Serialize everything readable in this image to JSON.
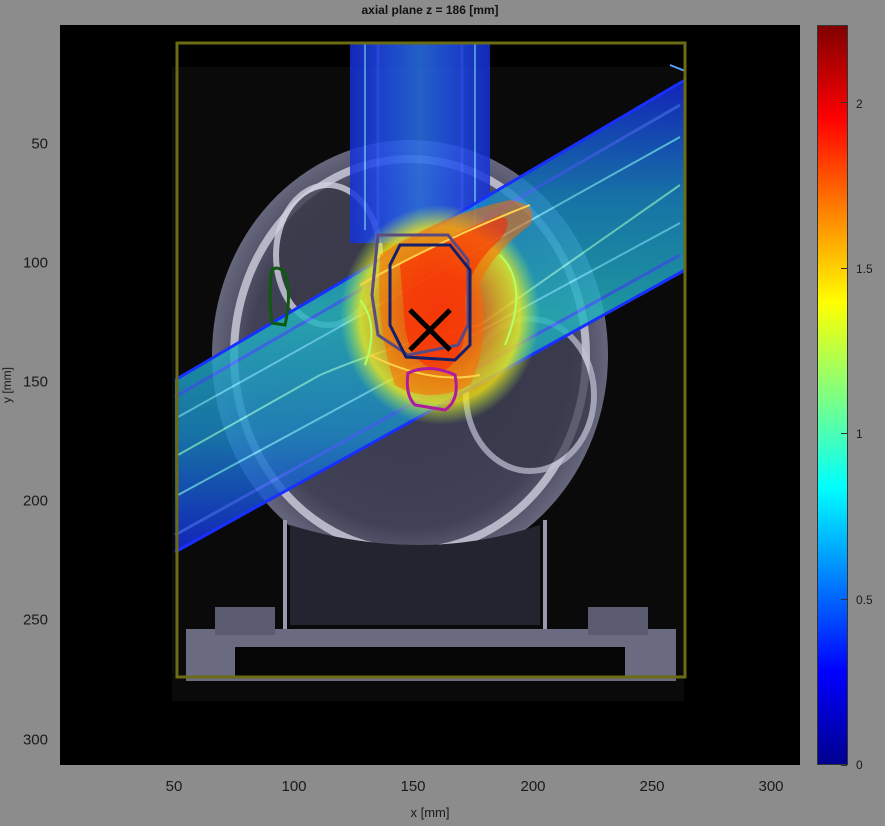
{
  "chart_data": {
    "type": "heatmap",
    "title": "axial plane z = 186 [mm]",
    "xlabel": "x [mm]",
    "ylabel": "y [mm]",
    "xlim": [
      10,
      320
    ],
    "ylim": [
      10,
      320
    ],
    "x_ticks": [
      "50",
      "100",
      "150",
      "200",
      "250",
      "300"
    ],
    "y_ticks": [
      "50",
      "100",
      "150",
      "200",
      "250",
      "300"
    ],
    "colorbar": {
      "colormap": "jet",
      "range": [
        0,
        2.22
      ],
      "ticks": [
        "0",
        "0.5",
        "1",
        "1.5",
        "2"
      ]
    },
    "isocenter_mm": [
      157,
      127
    ],
    "colors": {
      "background": "#000000",
      "figure": "#8c8c8c",
      "body_outline": "#6b6b14",
      "target_ptv": "#15206a",
      "target_ctv": "#5a4a80",
      "organ_left": "#0f5a0f",
      "organ_below": "#b01aa0",
      "isocenter_marker": "#000000"
    }
  }
}
